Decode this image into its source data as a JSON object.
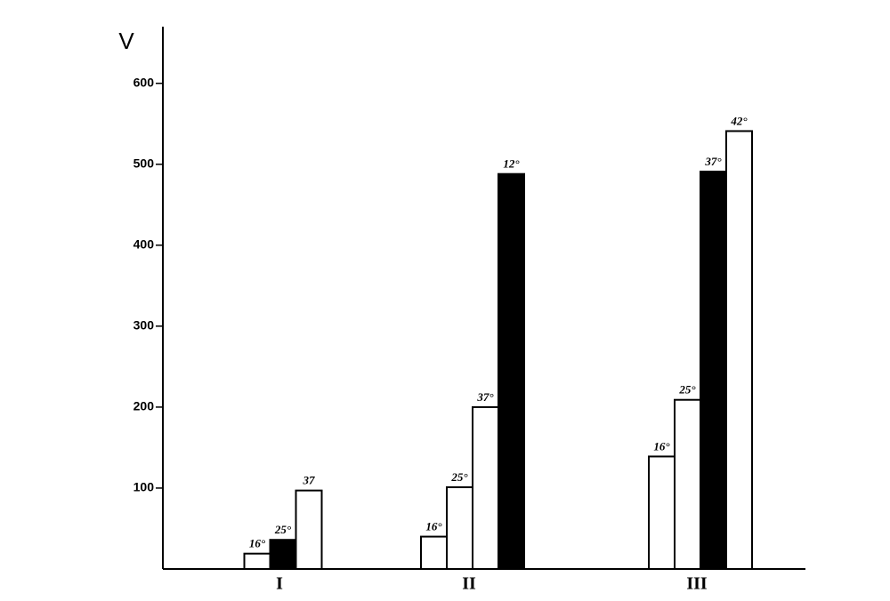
{
  "chart_data": {
    "type": "bar",
    "y_label": "V",
    "categories": [
      "I",
      "II",
      "III"
    ],
    "groups": [
      [
        {
          "label": "16°",
          "value": 19,
          "color": "#ffffff"
        },
        {
          "label": "25°",
          "value": 36,
          "color": "#000000"
        },
        {
          "label": "37",
          "value": 97,
          "color": "#ffffff"
        }
      ],
      [
        {
          "label": "16°",
          "value": 40,
          "color": "#ffffff"
        },
        {
          "label": "25°",
          "value": 101,
          "color": "#ffffff"
        },
        {
          "label": "37°",
          "value": 200,
          "color": "#ffffff"
        },
        {
          "label": "12°",
          "value": 488,
          "color": "#000000"
        }
      ],
      [
        {
          "label": "16°",
          "value": 139,
          "color": "#ffffff"
        },
        {
          "label": "25°",
          "value": 209,
          "color": "#ffffff"
        },
        {
          "label": "37°",
          "value": 491,
          "color": "#000000"
        },
        {
          "label": "42°",
          "value": 541,
          "color": "#ffffff"
        }
      ]
    ],
    "ylim": [
      0,
      670
    ],
    "yticks": [
      100,
      200,
      300,
      400,
      500,
      600
    ]
  }
}
